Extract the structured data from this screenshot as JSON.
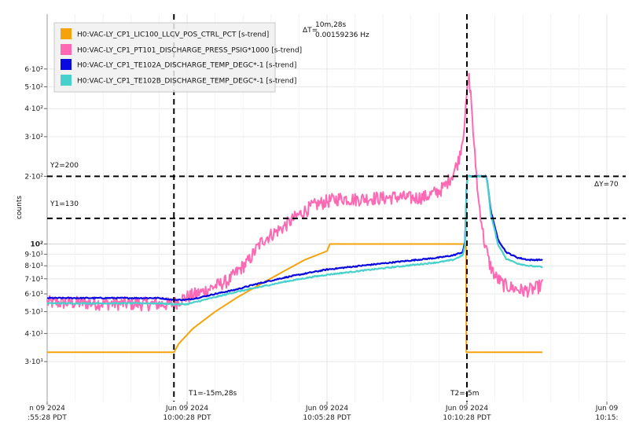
{
  "chart_data": {
    "type": "line",
    "y_scale": "log",
    "ylabel": "counts",
    "ylim": [
      28,
      620
    ],
    "grid": true,
    "legend_position": "top-left",
    "x_ticks": [
      {
        "t": -20,
        "line1": "n 09 2024",
        "line2": ":55:28 PDT"
      },
      {
        "t": -15,
        "line1": "Jun 09 2024",
        "line2": "10:00:28 PDT"
      },
      {
        "t": -10,
        "line1": "Jun 09 2024",
        "line2": "10:05:28 PDT"
      },
      {
        "t": -5,
        "line1": "Jun 09 2024",
        "line2": "10:10:28 PDT"
      },
      {
        "t": 0,
        "line1": "Jun 09",
        "line2": "10:15:"
      }
    ],
    "y_ticks": [
      {
        "v": 30,
        "label": "3·10¹",
        "major": false
      },
      {
        "v": 40,
        "label": "4·10¹",
        "major": false
      },
      {
        "v": 50,
        "label": "5·10¹",
        "major": false
      },
      {
        "v": 60,
        "label": "6·10¹",
        "major": false
      },
      {
        "v": 70,
        "label": "7·10¹",
        "major": false
      },
      {
        "v": 80,
        "label": "8·10¹",
        "major": false
      },
      {
        "v": 90,
        "label": "9·10¹",
        "major": false
      },
      {
        "v": 100,
        "label": "10²",
        "major": true
      },
      {
        "v": 200,
        "label": "2·10²",
        "major": false
      },
      {
        "v": 300,
        "label": "3·10²",
        "major": false
      },
      {
        "v": 400,
        "label": "4·10²",
        "major": false
      },
      {
        "v": 500,
        "label": "5·10²",
        "major": false
      },
      {
        "v": 600,
        "label": "6·10²",
        "major": false
      }
    ],
    "series": [
      {
        "name": "H0:VAC-LY_CP1_LIC100_LLCV_POS_CTRL_PCT [s-trend]",
        "color": "#f5a30a",
        "width": 2,
        "noise": 0,
        "points": [
          [
            -20,
            33
          ],
          [
            -15.47,
            33
          ],
          [
            -15.3,
            36
          ],
          [
            -14.8,
            42
          ],
          [
            -14.0,
            50
          ],
          [
            -13.2,
            58
          ],
          [
            -12.4,
            66
          ],
          [
            -11.6,
            75
          ],
          [
            -10.8,
            85
          ],
          [
            -10.0,
            93
          ],
          [
            -9.9,
            100
          ],
          [
            -5.1,
            100
          ],
          [
            -5.03,
            100
          ],
          [
            -5.02,
            33
          ],
          [
            -2.3,
            33
          ]
        ]
      },
      {
        "name": "H0:VAC-LY_CP1_PT101_DISCHARGE_PRESS_PSIG*1000 [s-trend]",
        "color": "#ff69b4",
        "width": 2,
        "noise": 0.07,
        "points": [
          [
            -20,
            55
          ],
          [
            -15.5,
            54
          ],
          [
            -15.2,
            57
          ],
          [
            -14.5,
            61
          ],
          [
            -13.5,
            69
          ],
          [
            -12.8,
            84
          ],
          [
            -12.3,
            104
          ],
          [
            -11.6,
            118
          ],
          [
            -11.0,
            135
          ],
          [
            -10.5,
            148
          ],
          [
            -10.0,
            155
          ],
          [
            -9.5,
            160
          ],
          [
            -9.0,
            158
          ],
          [
            -8.5,
            160
          ],
          [
            -8.0,
            160
          ],
          [
            -7.5,
            162
          ],
          [
            -7.0,
            160
          ],
          [
            -6.5,
            162
          ],
          [
            -6.0,
            172
          ],
          [
            -5.8,
            180
          ],
          [
            -5.5,
            205
          ],
          [
            -5.3,
            235
          ],
          [
            -5.15,
            295
          ],
          [
            -5.05,
            385
          ],
          [
            -5.0,
            470
          ],
          [
            -4.93,
            550
          ],
          [
            -4.85,
            440
          ],
          [
            -4.75,
            270
          ],
          [
            -4.6,
            160
          ],
          [
            -4.4,
            105
          ],
          [
            -4.2,
            82
          ],
          [
            -4.0,
            72
          ],
          [
            -3.7,
            66
          ],
          [
            -3.4,
            64
          ],
          [
            -3.0,
            62
          ],
          [
            -2.6,
            63
          ],
          [
            -2.3,
            66
          ]
        ]
      },
      {
        "name": "H0:VAC-LY_CP1_TE102A_DISCHARGE_TEMP_DEGC*-1 [s-trend]",
        "color": "#0a0ae0",
        "width": 2.2,
        "noise": 0.006,
        "points": [
          [
            -20,
            57.5
          ],
          [
            -17.5,
            57.5
          ],
          [
            -16,
            57.5
          ],
          [
            -15.5,
            56.5
          ],
          [
            -15,
            56.5
          ],
          [
            -14.5,
            58
          ],
          [
            -14,
            60
          ],
          [
            -13.3,
            62.5
          ],
          [
            -12.5,
            66.5
          ],
          [
            -11.5,
            71
          ],
          [
            -10.5,
            75
          ],
          [
            -10,
            77
          ],
          [
            -9,
            79.5
          ],
          [
            -8,
            82
          ],
          [
            -7,
            84.5
          ],
          [
            -6,
            87
          ],
          [
            -5.5,
            89
          ],
          [
            -5.15,
            92
          ],
          [
            -5.06,
            103
          ],
          [
            -5.03,
            150
          ],
          [
            -5.0,
            200
          ],
          [
            -4.3,
            200
          ],
          [
            -4.15,
            140
          ],
          [
            -3.9,
            105
          ],
          [
            -3.6,
            92
          ],
          [
            -3.2,
            87
          ],
          [
            -2.8,
            85
          ],
          [
            -2.3,
            85
          ]
        ]
      },
      {
        "name": "H0:VAC-LY_CP1_TE102B_DISCHARGE_TEMP_DEGC*-1 [s-trend]",
        "color": "#48d1cc",
        "width": 2.2,
        "noise": 0.006,
        "points": [
          [
            -20,
            54.5
          ],
          [
            -17.5,
            54.5
          ],
          [
            -16,
            54.5
          ],
          [
            -15.5,
            54
          ],
          [
            -15,
            54
          ],
          [
            -14.5,
            56
          ],
          [
            -14,
            58
          ],
          [
            -13.3,
            61
          ],
          [
            -12.5,
            64
          ],
          [
            -11.5,
            68
          ],
          [
            -10.5,
            71.5
          ],
          [
            -10,
            73
          ],
          [
            -9,
            75.5
          ],
          [
            -8,
            78
          ],
          [
            -7,
            80.5
          ],
          [
            -6,
            83
          ],
          [
            -5.5,
            85
          ],
          [
            -5.15,
            89
          ],
          [
            -5.06,
            100
          ],
          [
            -5.03,
            148
          ],
          [
            -5.0,
            200
          ],
          [
            -4.3,
            200
          ],
          [
            -4.15,
            135
          ],
          [
            -3.9,
            100
          ],
          [
            -3.6,
            86
          ],
          [
            -3.2,
            82
          ],
          [
            -2.8,
            80
          ],
          [
            -2.3,
            79
          ]
        ]
      }
    ],
    "cursors": {
      "t1": {
        "t": -15.47,
        "label": "T1=-15m,28s"
      },
      "t2": {
        "t": -5.0,
        "label": "T2=-5m"
      },
      "y1": {
        "v": 130,
        "label": "Y1=130"
      },
      "y2": {
        "v": 200,
        "label": "Y2=200"
      },
      "delta_t": {
        "symbol": "ΔT=",
        "value": "10m,28s",
        "freq": "0.00159236 Hz"
      },
      "delta_y": {
        "label": "ΔY=70"
      }
    }
  }
}
